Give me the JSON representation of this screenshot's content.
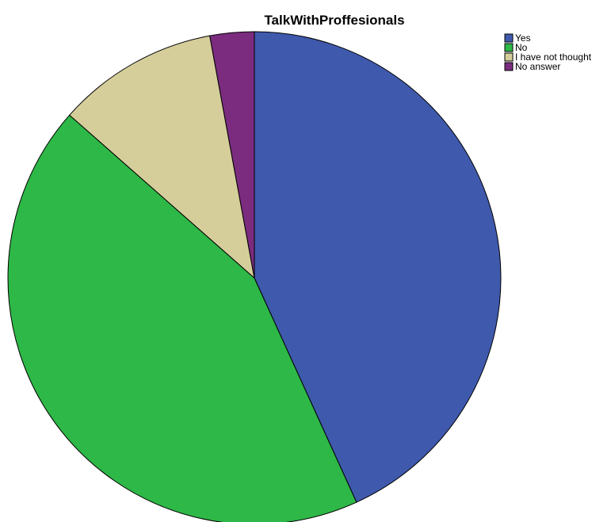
{
  "chart_data": {
    "type": "pie",
    "title": "TalkWithProffesionals",
    "legend_position": "top-right",
    "start_angle": "12-o-clock",
    "direction": "clockwise",
    "slices": [
      {
        "label": "Yes",
        "value": 43.2,
        "color": "#3F59AC"
      },
      {
        "label": "No",
        "value": 43.3,
        "color": "#2EB847"
      },
      {
        "label": "I have not thought",
        "value": 10.6,
        "color": "#D5CE9B"
      },
      {
        "label": "No answer",
        "value": 2.9,
        "color": "#7B2C7F"
      }
    ]
  }
}
